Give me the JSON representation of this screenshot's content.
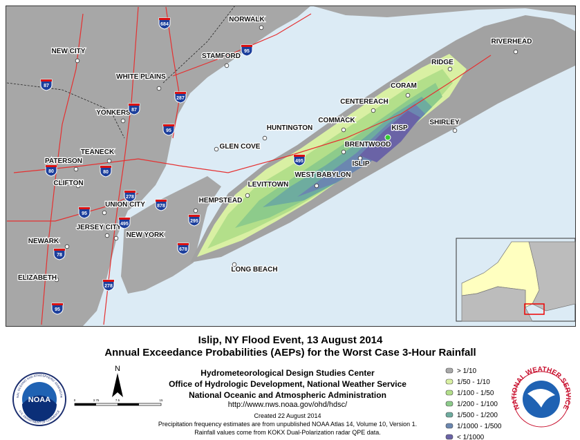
{
  "map": {
    "places": [
      "NORWALK",
      "NEW CITY",
      "STAMFORD",
      "WHITE PLAINS",
      "RIVERHEAD",
      "RIDGE",
      "CORAM",
      "CENTEREACH",
      "COMMACK",
      "HUNTINGTON",
      "SHIRLEY",
      "BRENTWOOD",
      "ISLIP",
      "GLEN COVE",
      "YONKERS",
      "TEANECK",
      "PATERSON",
      "CLIFTON",
      "WEST BABYLON",
      "LEVITTOWN",
      "HEMPSTEAD",
      "UNION CITY",
      "JERSEY CITY",
      "NEW YORK",
      "NEWARK",
      "ELIZABETH",
      "LONG BEACH"
    ],
    "station": "KISP",
    "highways": [
      "684",
      "95",
      "87",
      "287",
      "87",
      "95",
      "80",
      "80",
      "278",
      "878",
      "95",
      "495",
      "495",
      "295",
      "678",
      "78",
      "278",
      "95"
    ]
  },
  "title": [
    "Islip, NY Flood Event, 13 August 2014",
    "Annual Exceedance Probabilities (AEPs) for the Worst Case 3-Hour Rainfall"
  ],
  "agency": [
    "Hydrometeorological Design Studies Center",
    "Office of Hydrologic Development, National Weather Service",
    "National Oceanic and Atmospheric Administration"
  ],
  "url": "http://www.nws.noaa.gov/ohd/hdsc/",
  "notes": [
    "Created 22 August 2014",
    "Precipitation frequency estimates are from unpublished NOAA Atlas 14, Volume 10, Version 1.",
    "Rainfall values come from KOKX Dual-Polarization radar QPE data."
  ],
  "legend": [
    {
      "label": "> 1/10",
      "color": "#a9a9a9"
    },
    {
      "label": "1/50 - 1/10",
      "color": "#d9f0a3"
    },
    {
      "label": "1/100 - 1/50",
      "color": "#b3df8a"
    },
    {
      "label": "1/200 - 1/100",
      "color": "#8dcb8b"
    },
    {
      "label": "1/500 - 1/200",
      "color": "#6eac9f"
    },
    {
      "label": "1/1000 - 1/500",
      "color": "#6b87b0"
    },
    {
      "label": "< 1/1000",
      "color": "#6a63a6"
    }
  ],
  "north": "N",
  "scale": [
    "0",
    "3.75",
    "7.5",
    "15"
  ],
  "noaa_logo": {
    "name": "NOAA",
    "ring_top": "NATIONAL OCEANIC AND ATMOSPHERIC ADMINISTRATION",
    "ring_bottom": "U.S. DEPARTMENT OF COMMERCE"
  },
  "nws_logo": "NATIONAL WEATHER SERVICE"
}
